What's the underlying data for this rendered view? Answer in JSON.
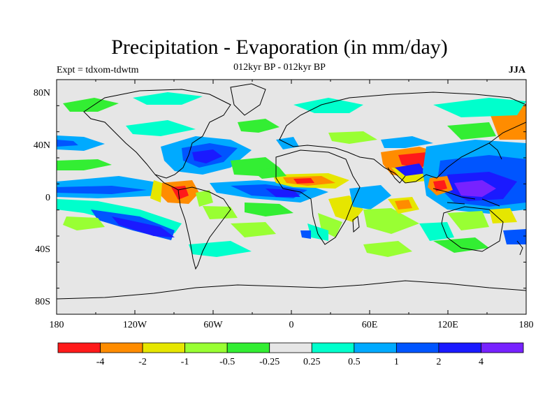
{
  "title": "Precipitation - Evaporation (in mm/day)",
  "subtitle": "012kyr BP - 012kyr BP",
  "left_label": "Expt = tdxom-tdwtm",
  "right_label": "JJA",
  "axes": {
    "lon_ticks": [
      "180",
      "120W",
      "60W",
      "0",
      "60E",
      "120E",
      "180"
    ],
    "lat_ticks": [
      "80N",
      "40N",
      "0",
      "40S",
      "80S"
    ]
  },
  "colorbar": {
    "colors": [
      "#ff1a1a",
      "#ff8c00",
      "#e6e600",
      "#99ff33",
      "#33ee33",
      "#e6e6e6",
      "#00ffcc",
      "#00aaff",
      "#0055ff",
      "#1a1aff",
      "#7722ff"
    ],
    "labels": [
      "-4",
      "-2",
      "-1",
      "-0.5",
      "-0.25",
      "0.25",
      "0.5",
      "1",
      "2",
      "4"
    ]
  }
}
